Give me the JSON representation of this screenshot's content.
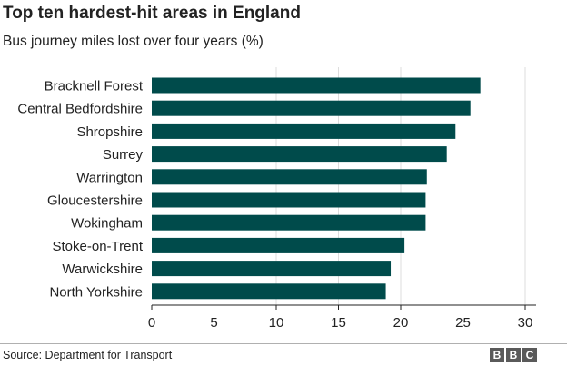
{
  "header": {
    "title": "Top ten hardest-hit areas in England",
    "subtitle": "Bus journey miles lost over four years (%)"
  },
  "footer": {
    "source": "Source: Department for Transport",
    "logo_letters": [
      "B",
      "B",
      "C"
    ]
  },
  "colors": {
    "bar": "#004b4b",
    "grid": "#dddddd",
    "axis": "#222222"
  },
  "chart_data": {
    "type": "bar",
    "orientation": "horizontal",
    "title": "Top ten hardest-hit areas in England",
    "subtitle": "Bus journey miles lost over four years (%)",
    "categories": [
      "Bracknell Forest",
      "Central Bedfordshire",
      "Shropshire",
      "Surrey",
      "Warrington",
      "Gloucestershire",
      "Wokingham",
      "Stoke-on-Trent",
      "Warwickshire",
      "North Yorkshire"
    ],
    "values": [
      26.4,
      25.6,
      24.4,
      23.7,
      22.1,
      22.0,
      22.0,
      20.3,
      19.2,
      18.8
    ],
    "xlim": [
      0,
      30
    ],
    "xticks": [
      0,
      5,
      10,
      15,
      20,
      25,
      30
    ],
    "grid": true
  }
}
